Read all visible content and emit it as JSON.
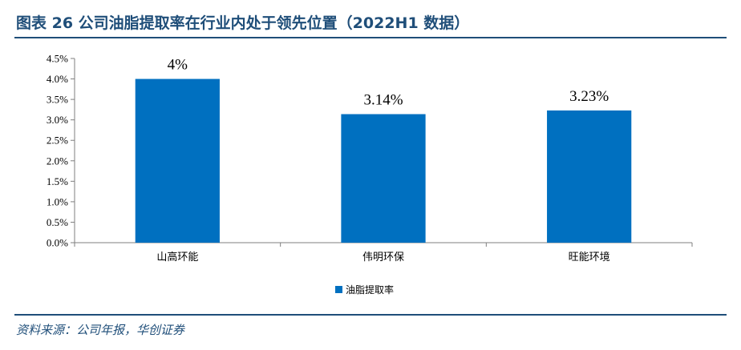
{
  "header": {
    "title": "图表 26   公司油脂提取率在行业内处于领先位置（2022H1 数据）"
  },
  "chart_data": {
    "type": "bar",
    "categories": [
      "山高环能",
      "伟明环保",
      "旺能环境"
    ],
    "series": [
      {
        "name": "油脂提取率",
        "values": [
          4.0,
          3.14,
          3.23
        ],
        "color": "#0070c0"
      }
    ],
    "data_labels": [
      "4%",
      "3.14%",
      "3.23%"
    ],
    "y_ticks": [
      "0.0%",
      "0.5%",
      "1.0%",
      "1.5%",
      "2.0%",
      "2.5%",
      "3.0%",
      "3.5%",
      "4.0%",
      "4.5%"
    ],
    "ylim": [
      0,
      4.5
    ],
    "legend_position": "bottom",
    "grid": false
  },
  "legend": {
    "label": "油脂提取率"
  },
  "footer": {
    "source": "资料来源：公司年报，华创证券"
  }
}
